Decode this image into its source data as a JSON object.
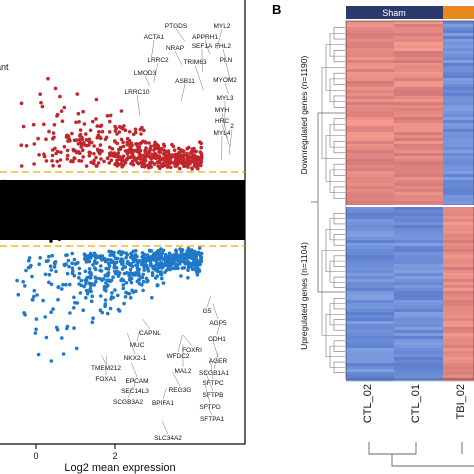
{
  "figure": {
    "panel_b_letter": "B",
    "legend_partial": "ant"
  },
  "colors": {
    "up": "#c0272d",
    "down": "#1f78c8",
    "ns": "#000000",
    "threshold": "#f2a900",
    "sham_bar": "#2b3a6b",
    "tbi_bar": "#e8891d",
    "heat_high": "#e58a84",
    "heat_low": "#6f90d8"
  },
  "chart_data": [
    {
      "type": "scatter",
      "title": "",
      "xlabel": "Log2 mean expression",
      "ylabel": "",
      "xlim": [
        -1.2,
        3.6
      ],
      "x_ticks": [
        "0",
        "2"
      ],
      "thresholds": "dashed horizontal lines above and below the central black band",
      "series": [
        {
          "name": "",
          "color": "up",
          "description": "upregulated points"
        },
        {
          "name": "",
          "color": "down",
          "description": "downregulated points"
        },
        {
          "name": "",
          "color": "ns",
          "description": "not significant points"
        }
      ],
      "labels_top": [
        "PTGDS",
        "MYL2",
        "ACTA1",
        "APPRH1",
        "NRAP",
        "SEF1A",
        "FHL2",
        "LRRC2",
        "TRIM63",
        "PLN",
        "LMOD3",
        "ASB11",
        "MYOM2",
        "LRRC10",
        "MYL3",
        "MYH",
        "HRC",
        "MYL4",
        "2"
      ],
      "labels_bottom": [
        "G5",
        "AGP5",
        "CAPNL",
        "CDH1",
        "MUC",
        "FOXRI",
        "WFDC2",
        "NKX2-1",
        "AGER",
        "TMEM212",
        "MAL2",
        "SCGB1A1",
        "FOXA1",
        "EPCAM",
        "SFTPC",
        "SEC14L3",
        "REG3G",
        "SFTPB",
        "SCGB3A2",
        "BPIFA1",
        "SFTPD",
        "SFTPA1",
        "SLC34A2"
      ]
    },
    {
      "type": "heatmap",
      "title": "",
      "groups": [
        "Sham"
      ],
      "columns": [
        "CTL_02",
        "CTL_01",
        "TBI_02"
      ],
      "row_clusters": [
        {
          "label": "Downregulated genes (n=1190)",
          "count": 1190
        },
        {
          "label": "Upregulated genes (n=1104)",
          "count": 1104
        }
      ]
    }
  ]
}
